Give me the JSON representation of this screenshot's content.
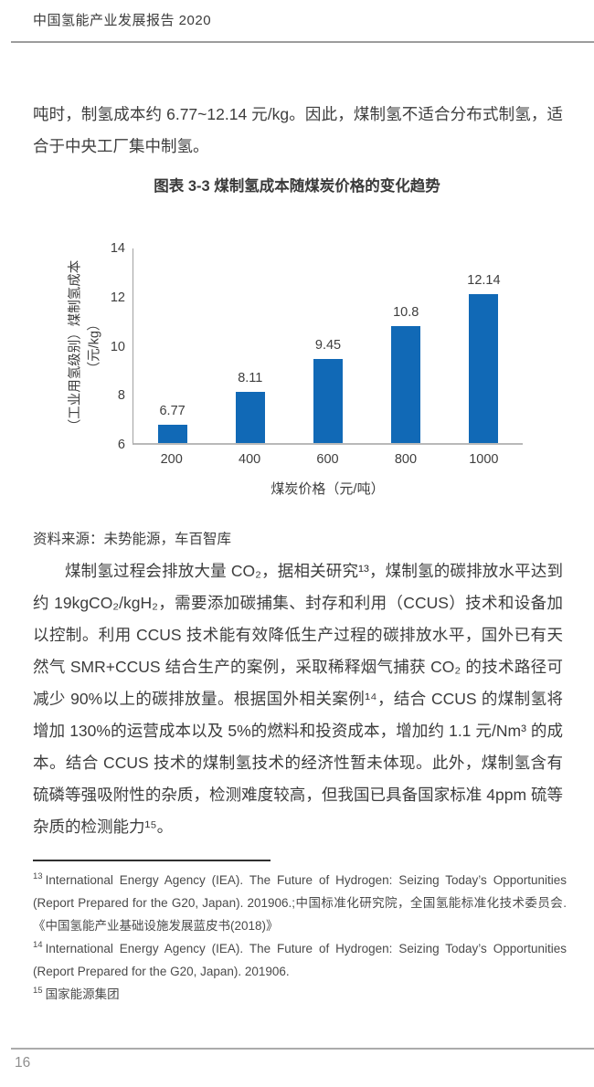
{
  "header": {
    "report_title": "中国氢能产业发展报告 2020"
  },
  "intro_paragraph": "吨时，制氢成本约 6.77~12.14 元/kg。因此，煤制氢不适合分布式制氢，适合于中央工厂集中制氢。",
  "figure": {
    "title": "图表 3-3 煤制氢成本随煤炭价格的变化趋势",
    "source": "资料来源：未势能源，车百智库"
  },
  "chart_data": {
    "type": "bar",
    "title": "图表 3-3 煤制氢成本随煤炭价格的变化趋势",
    "categories": [
      "200",
      "400",
      "600",
      "800",
      "1000"
    ],
    "values": [
      6.77,
      8.11,
      9.45,
      10.8,
      12.14
    ],
    "value_labels": [
      "6.77",
      "8.11",
      "9.45",
      "10.8",
      "12.14"
    ],
    "xlabel": "煤炭价格（元/吨）",
    "ylabel": "（工业用氢级别）煤制氢成本",
    "ylabel_unit": "（元/kg）",
    "ylim": [
      6,
      14
    ],
    "yticks": [
      6,
      8,
      10,
      12,
      14
    ],
    "bar_color": "#1169B6",
    "grid": false,
    "legend_position": "none"
  },
  "body_paragraph": "煤制氢过程会排放大量 CO₂，据相关研究¹³，煤制氢的碳排放水平达到约 19kgCO₂/kgH₂，需要添加碳捕集、封存和利用（CCUS）技术和设备加以控制。利用 CCUS 技术能有效降低生产过程的碳排放水平，国外已有天然气 SMR+CCUS 结合生产的案例，采取稀释烟气捕获 CO₂ 的技术路径可减少 90%以上的碳排放量。根据国外相关案例¹⁴，结合 CCUS 的煤制氢将增加 130%的运营成本以及 5%的燃料和投资成本，增加约 1.1 元/Nm³ 的成本。结合 CCUS 技术的煤制氢技术的经济性暂未体现。此外，煤制氢含有硫磷等强吸附性的杂质，检测难度较高，但我国已具备国家标准 4ppm 硫等杂质的检测能力¹⁵。",
  "footnotes": [
    {
      "marker": "13",
      "text": "International Energy Agency (IEA). The Future of Hydrogen: Seizing Today’s Opportunities (Report Prepared for the G20, Japan). 201906.;中国标准化研究院，全国氢能标准化技术委员会.《中国氢能产业基础设施发展蓝皮书(2018)》"
    },
    {
      "marker": "14",
      "text": "International Energy Agency (IEA). The Future of Hydrogen: Seizing Today’s Opportunities (Report Prepared for the G20, Japan). 201906."
    },
    {
      "marker": "15",
      "text": "国家能源集团"
    }
  ],
  "footer": {
    "page_number": "16"
  }
}
